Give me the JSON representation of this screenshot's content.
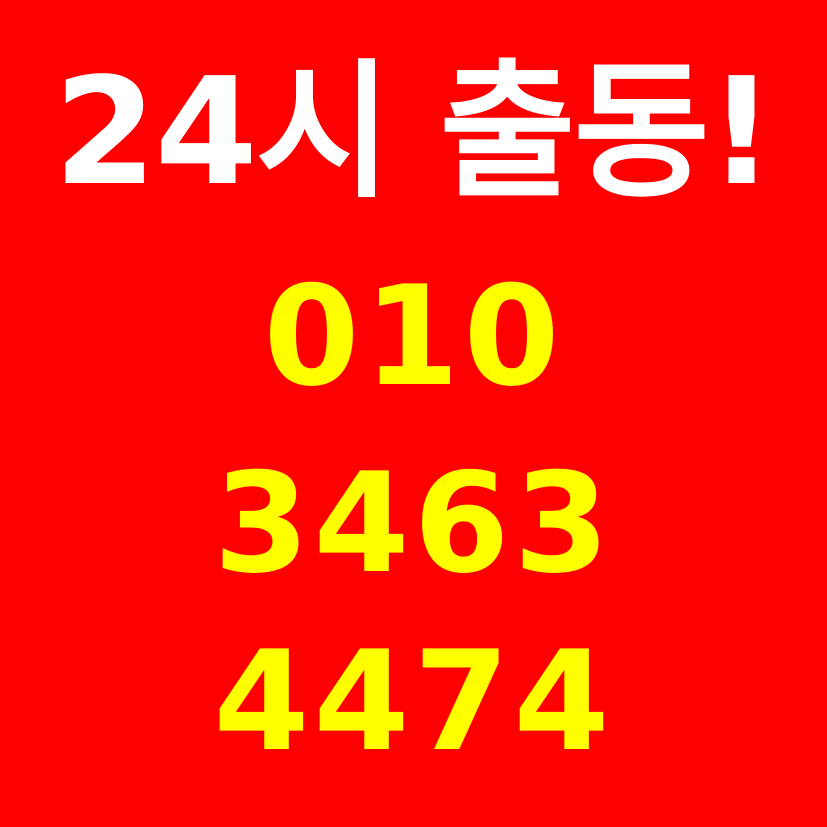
{
  "headline": "24시 출동!",
  "phone_lines": [
    "010",
    "3463",
    "4474"
  ],
  "colors": {
    "background": "#ff0000",
    "headline": "#ffffff",
    "phone": "#ffff00"
  }
}
